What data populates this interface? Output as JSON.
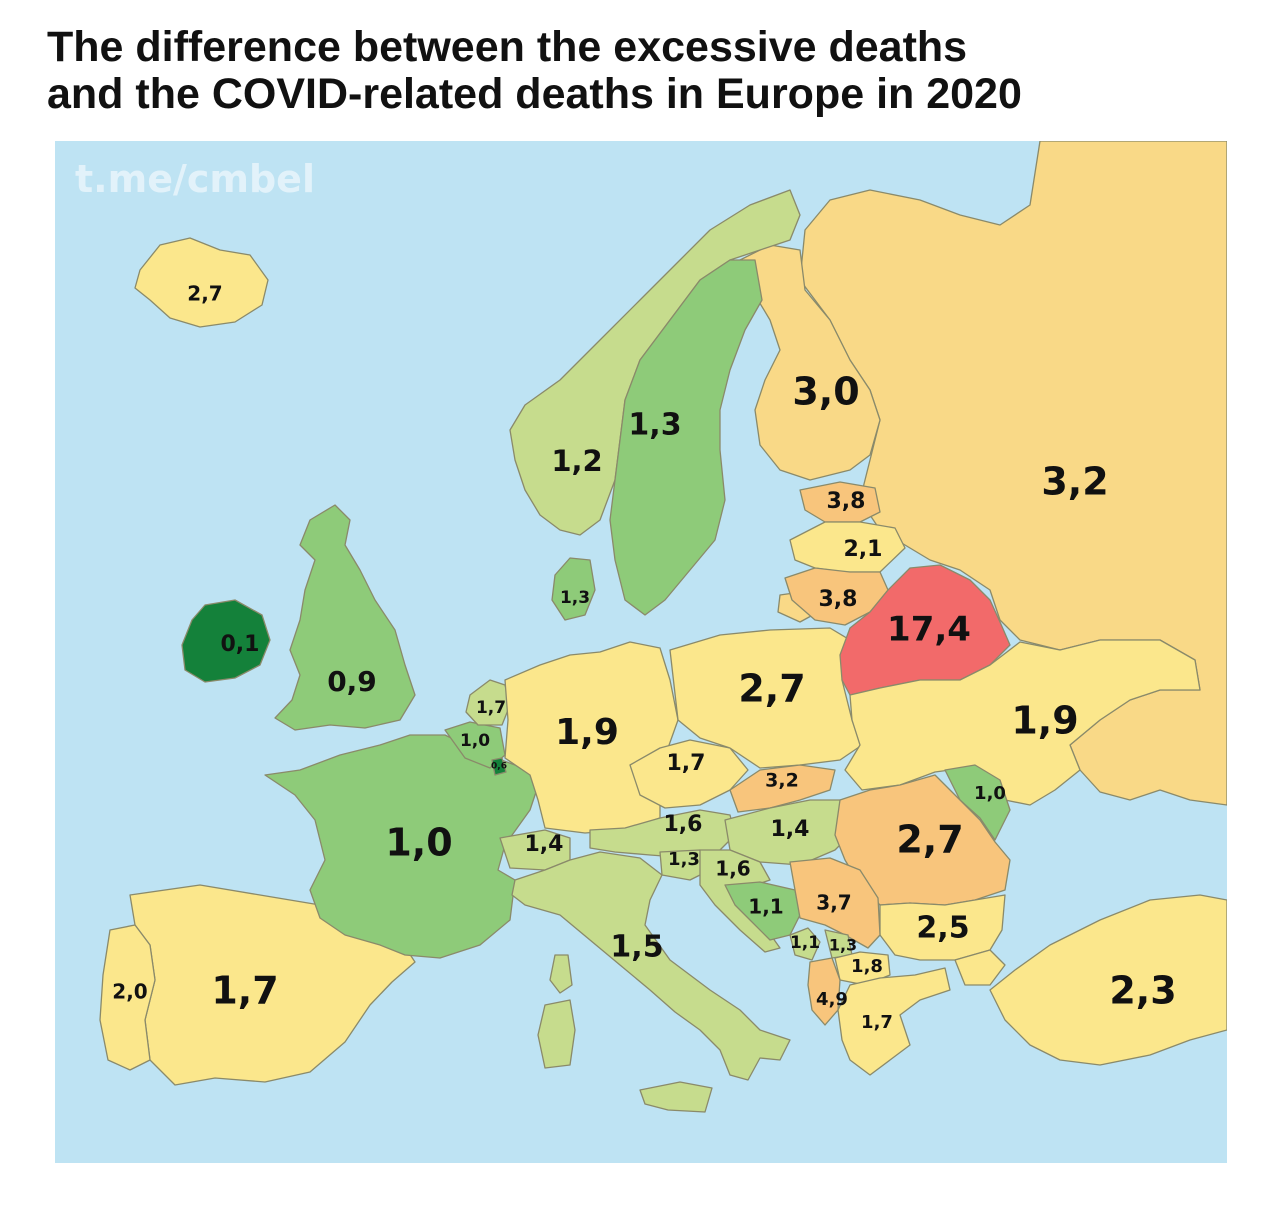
{
  "title_line1": "The difference between the excessive deaths",
  "title_line2": "and the COVID-related deaths in Europe in 2020",
  "watermark": "t.me/cmbel",
  "colors": {
    "sea": "#bee3f3",
    "dark_green": "#14813a",
    "green": "#8ecb79",
    "light_green": "#c6dc8d",
    "yellow": "#fbe78c",
    "light_orange": "#f9d987",
    "orange": "#f8c57c",
    "red": "#f26a6a"
  },
  "countries": [
    {
      "name": "Iceland",
      "value": "2,7"
    },
    {
      "name": "Norway",
      "value": "1,2"
    },
    {
      "name": "Sweden",
      "value": "1,3"
    },
    {
      "name": "Finland",
      "value": "3,0"
    },
    {
      "name": "Russia",
      "value": "3,2"
    },
    {
      "name": "Estonia",
      "value": "3,8"
    },
    {
      "name": "Latvia",
      "value": "2,1"
    },
    {
      "name": "Lithuania",
      "value": "3,8"
    },
    {
      "name": "Belarus",
      "value": "17,4"
    },
    {
      "name": "Denmark",
      "value": "1,3"
    },
    {
      "name": "Ireland",
      "value": "0,1"
    },
    {
      "name": "United Kingdom",
      "value": "0,9"
    },
    {
      "name": "Netherlands",
      "value": "1,7"
    },
    {
      "name": "Belgium",
      "value": "1,0"
    },
    {
      "name": "Luxembourg",
      "value": "0,6"
    },
    {
      "name": "Germany",
      "value": "1,9"
    },
    {
      "name": "Poland",
      "value": "2,7"
    },
    {
      "name": "Ukraine",
      "value": "1,9"
    },
    {
      "name": "Czechia",
      "value": "1,7"
    },
    {
      "name": "Slovakia",
      "value": "3,2"
    },
    {
      "name": "Moldova",
      "value": "1,0"
    },
    {
      "name": "Austria",
      "value": "1,6"
    },
    {
      "name": "Hungary",
      "value": "1,4"
    },
    {
      "name": "Romania",
      "value": "2,7"
    },
    {
      "name": "France",
      "value": "1,0"
    },
    {
      "name": "Switzerland",
      "value": "1,4"
    },
    {
      "name": "Slovenia",
      "value": "1,3"
    },
    {
      "name": "Croatia",
      "value": "1,6"
    },
    {
      "name": "Bosnia and Herzegovina",
      "value": "1,1"
    },
    {
      "name": "Serbia",
      "value": "3,7"
    },
    {
      "name": "Montenegro",
      "value": "1,1"
    },
    {
      "name": "Kosovo",
      "value": "1,3"
    },
    {
      "name": "North Macedonia",
      "value": "1,8"
    },
    {
      "name": "Albania",
      "value": "4,9"
    },
    {
      "name": "Greece",
      "value": "1,7"
    },
    {
      "name": "Bulgaria",
      "value": "2,5"
    },
    {
      "name": "Turkey",
      "value": "2,3"
    },
    {
      "name": "Italy",
      "value": "1,5"
    },
    {
      "name": "Portugal",
      "value": "2,0"
    },
    {
      "name": "Spain",
      "value": "1,7"
    }
  ]
}
